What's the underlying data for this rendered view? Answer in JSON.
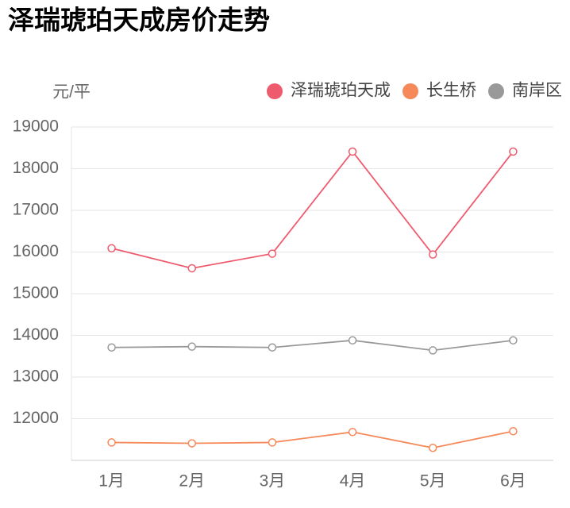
{
  "chart_data": {
    "type": "line",
    "title": "泽瑞琥珀天成房价走势",
    "ylabel": "元/平",
    "categories": [
      "1月",
      "2月",
      "3月",
      "4月",
      "5月",
      "6月"
    ],
    "series": [
      {
        "name": "泽瑞琥珀天成",
        "color": "#ee5b6e",
        "values": [
          16090,
          15610,
          15960,
          18410,
          15940,
          18410
        ]
      },
      {
        "name": "长生桥",
        "color": "#f5895a",
        "values": [
          11430,
          11410,
          11430,
          11680,
          11300,
          11700
        ]
      },
      {
        "name": "南岸区",
        "color": "#999999",
        "values": [
          13710,
          13730,
          13710,
          13880,
          13640,
          13880
        ]
      }
    ],
    "ylim": [
      11000,
      19000
    ],
    "yticks": [
      12000,
      13000,
      14000,
      15000,
      16000,
      17000,
      18000,
      19000
    ],
    "grid": true,
    "legend": "top-right"
  }
}
